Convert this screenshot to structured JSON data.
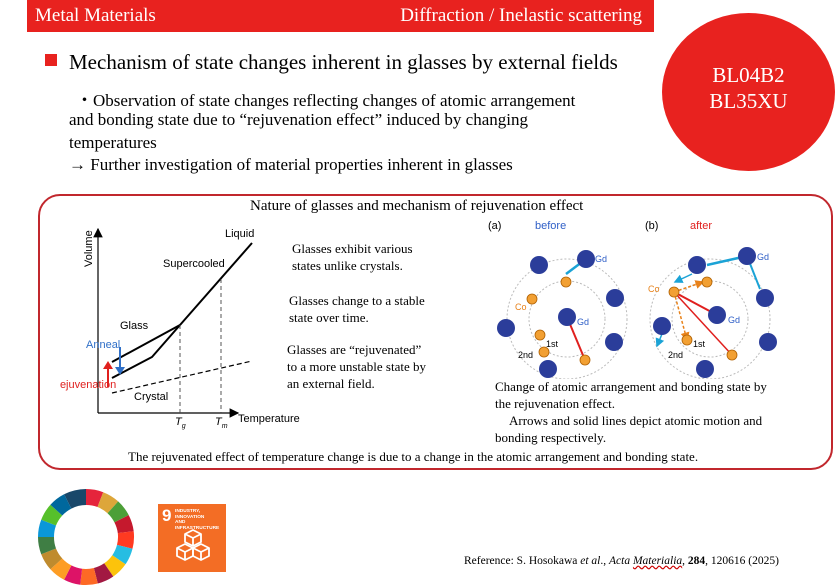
{
  "header": {
    "left_label": "Metal Materials",
    "right_label": "Diffraction / Inelastic scattering",
    "accent_color": "#e8221f"
  },
  "beamlines": {
    "line1": "BL04B2",
    "line2": "BL35XU"
  },
  "heading": "Mechanism of state changes inherent in glasses by external fields",
  "observation": {
    "line1": "・Observation of state changes reflecting changes of atomic arrangement",
    "line2": "and bonding state due to “rejuvenation effect” induced by changing",
    "line3": "temperatures"
  },
  "further": "→  Further investigation of material properties inherent in glasses",
  "panel": {
    "title": "Nature of glasses and mechanism of rejuvenation effect",
    "caption": "The rejuvenated effect of temperature change is due to a change in the atomic arrangement and bonding state."
  },
  "graph": {
    "ylabel": "Volume",
    "xlabel": "Temperature",
    "liquid": "Liquid",
    "supercooled": "Supercooled",
    "glass": "Glass",
    "anneal": "Anneal",
    "rejuvenation": "Rejuvenation",
    "crystal": "Crystal",
    "tg": "T",
    "tg_sub": "g",
    "tm": "T",
    "tm_sub": "m"
  },
  "notes": {
    "n1a": "Glasses exhibit various",
    "n1b": "states unlike crystals.",
    "n2a": "Glasses change to a stable",
    "n2b": "state over time.",
    "n3a": "Glasses are “rejuvenated”",
    "n3b": "to a more unstable state by",
    "n3c": "an external field."
  },
  "atoms": {
    "a_label": "(a)",
    "a_title": "before",
    "b_label": "(b)",
    "b_title": "after",
    "gd": "Gd",
    "co": "Co",
    "first": "1st",
    "second": "2nd"
  },
  "atoms_caption": {
    "l1": "Change of atomic arrangement and bonding state by",
    "l2": "the rejuvenation effect.",
    "l3": "Arrows and solid lines depict atomic motion and",
    "l4": "bonding respectively."
  },
  "sdg": {
    "number": "9",
    "line1": "INDUSTRY, INNOVATION",
    "line2": "AND INFRASTRUCTURE"
  },
  "reference": {
    "prefix": "Reference: S. Hosokawa ",
    "etal": "et al",
    "mid": "., ",
    "journal1": "Acta ",
    "journal2": "Materialia",
    "sep": ", ",
    "volume": "284",
    "rest": ", 120616 (2025)"
  }
}
